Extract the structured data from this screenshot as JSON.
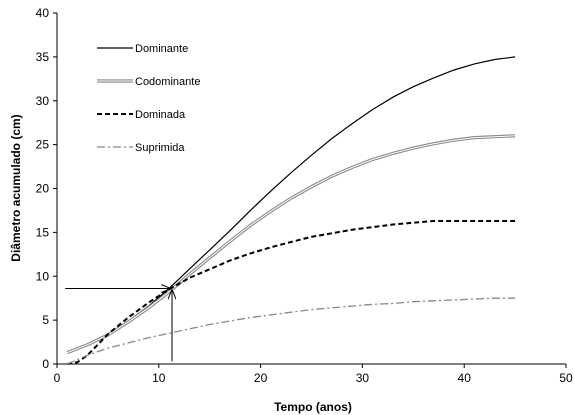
{
  "chart_data": {
    "type": "line",
    "title": "",
    "xlabel": "Tempo (anos)",
    "ylabel": "Diâmetro acumulado (cm)",
    "xlim": [
      0,
      50
    ],
    "ylim": [
      0,
      40
    ],
    "xticks": [
      0,
      10,
      20,
      30,
      40,
      50
    ],
    "yticks": [
      0,
      5,
      10,
      15,
      20,
      25,
      30,
      35,
      40
    ],
    "grid": false,
    "legend_position": "top-left",
    "series": [
      {
        "name": "Dominante",
        "color": "#000000",
        "style": "solid",
        "x": [
          1,
          3,
          5,
          7,
          9,
          11,
          13,
          15,
          17,
          19,
          21,
          23,
          25,
          27,
          29,
          31,
          33,
          35,
          37,
          39,
          41,
          43,
          45
        ],
        "y": [
          1.3,
          2.2,
          3.4,
          4.9,
          6.6,
          8.6,
          10.8,
          13.0,
          15.2,
          17.5,
          19.7,
          21.8,
          23.8,
          25.7,
          27.4,
          29.0,
          30.4,
          31.6,
          32.6,
          33.5,
          34.2,
          34.7,
          35.0
        ]
      },
      {
        "name": "Codominante",
        "color": "#888888",
        "style": "double",
        "x": [
          1,
          3,
          5,
          7,
          9,
          11,
          13,
          15,
          17,
          19,
          21,
          23,
          25,
          27,
          29,
          31,
          33,
          35,
          37,
          39,
          41,
          43,
          45
        ],
        "y": [
          1.3,
          2.2,
          3.3,
          4.8,
          6.4,
          8.2,
          10.2,
          12.1,
          14.0,
          15.8,
          17.4,
          18.9,
          20.2,
          21.4,
          22.4,
          23.3,
          24.0,
          24.6,
          25.1,
          25.5,
          25.8,
          25.9,
          26.0
        ]
      },
      {
        "name": "Dominada",
        "color": "#000000",
        "style": "dashed",
        "x": [
          1,
          2,
          3,
          5,
          7,
          9,
          11,
          13,
          15,
          17,
          19,
          21,
          23,
          25,
          27,
          29,
          31,
          33,
          35,
          37,
          39,
          41,
          43,
          45
        ],
        "y": [
          0,
          0.2,
          1.0,
          3.4,
          5.3,
          7.0,
          8.5,
          9.8,
          10.8,
          11.8,
          12.6,
          13.3,
          13.9,
          14.5,
          14.9,
          15.3,
          15.6,
          15.9,
          16.1,
          16.3,
          16.3,
          16.3,
          16.3,
          16.3
        ]
      },
      {
        "name": "Suprimida",
        "color": "#888888",
        "style": "dashdot",
        "x": [
          1,
          3,
          5,
          7,
          9,
          11,
          13,
          15,
          17,
          19,
          21,
          23,
          25,
          27,
          29,
          31,
          33,
          35,
          37,
          39,
          41,
          43,
          45
        ],
        "y": [
          0,
          1.0,
          1.8,
          2.4,
          3.0,
          3.5,
          4.0,
          4.5,
          4.9,
          5.3,
          5.6,
          5.9,
          6.2,
          6.4,
          6.6,
          6.8,
          6.9,
          7.1,
          7.2,
          7.3,
          7.4,
          7.5,
          7.5
        ]
      }
    ],
    "annotations": [
      {
        "type": "arrow",
        "from": [
          0.8,
          8.6
        ],
        "to": [
          11.1,
          8.6
        ]
      },
      {
        "type": "arrow",
        "from": [
          11.3,
          0.3
        ],
        "to": [
          11.3,
          8.4
        ]
      }
    ]
  }
}
